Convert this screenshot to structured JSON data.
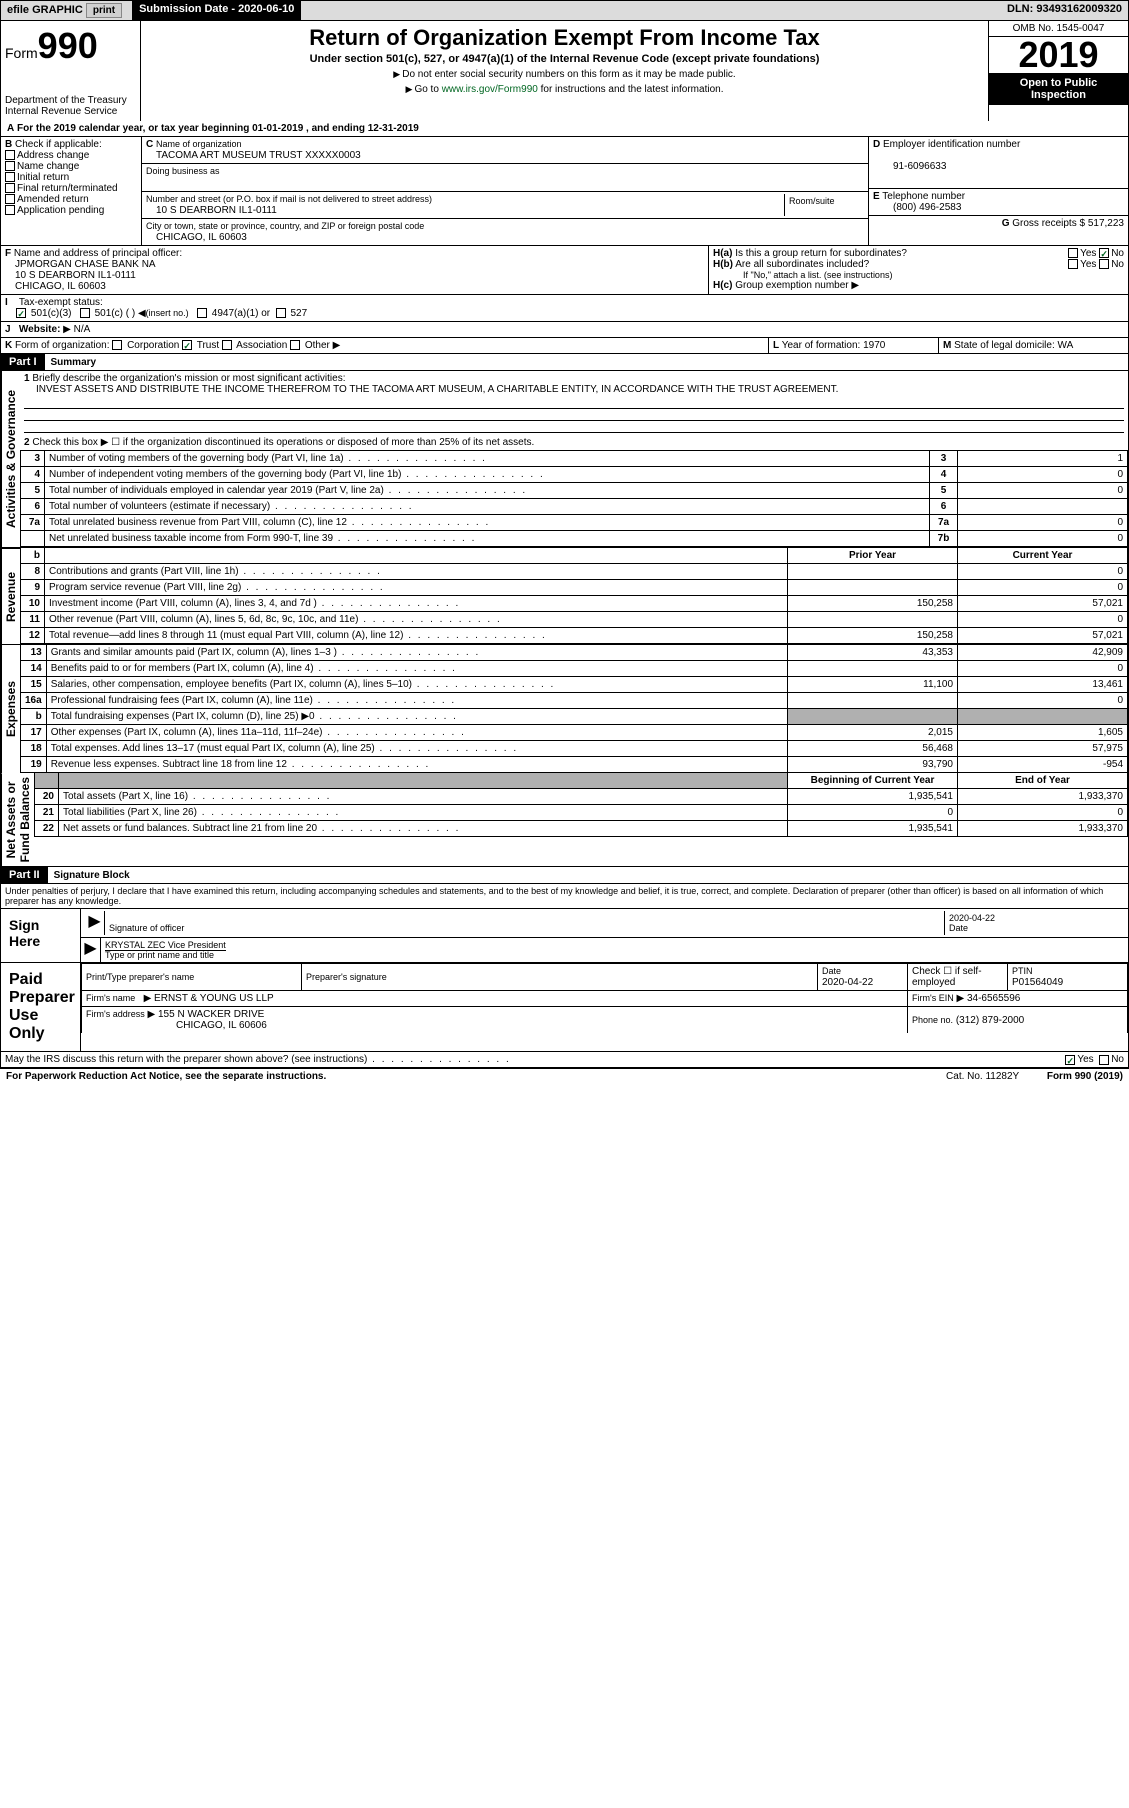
{
  "topbar": {
    "efile": "efile GRAPHIC",
    "print": "print",
    "subdate_label": "Submission Date",
    "subdate": "2020-06-10",
    "dln_label": "DLN:",
    "dln": "93493162009320"
  },
  "hdr": {
    "form_prefix": "Form",
    "form_num": "990",
    "dept1": "Department of the Treasury",
    "dept2": "Internal Revenue Service",
    "title": "Return of Organization Exempt From Income Tax",
    "sub": "Under section 501(c), 527, or 4947(a)(1) of the Internal Revenue Code (except private foundations)",
    "note1": "Do not enter social security numbers on this form as it may be made public.",
    "note2_pre": "Go to ",
    "note2_link": "www.irs.gov/Form990",
    "note2_post": " for instructions and the latest information.",
    "omb": "OMB No. 1545-0047",
    "year": "2019",
    "open1": "Open to Public",
    "open2": "Inspection"
  },
  "lineA": "For the 2019 calendar year, or tax year beginning 01-01-2019    , and ending 12-31-2019",
  "B": {
    "label": "Check if applicable:",
    "items": [
      "Address change",
      "Name change",
      "Initial return",
      "Final return/terminated",
      "Amended return",
      "Application pending"
    ]
  },
  "C": {
    "name_label": "Name of organization",
    "name": "TACOMA ART MUSEUM TRUST XXXXX0003",
    "dba_label": "Doing business as",
    "addr_label": "Number and street (or P.O. box if mail is not delivered to street address)",
    "room_label": "Room/suite",
    "addr": "10 S DEARBORN IL1-0111",
    "city_label": "City or town, state or province, country, and ZIP or foreign postal code",
    "city": "CHICAGO, IL  60603"
  },
  "D": {
    "label": "Employer identification number",
    "val": "91-6096633"
  },
  "E": {
    "label": "Telephone number",
    "val": "(800) 496-2583"
  },
  "G": {
    "label": "Gross receipts $",
    "val": "517,223"
  },
  "F": {
    "label": "Name and address of principal officer:",
    "name": "JPMORGAN CHASE BANK NA",
    "addr1": "10 S DEARBORN IL1-0111",
    "addr2": "CHICAGO, IL  60603"
  },
  "H": {
    "a": "Is this a group return for subordinates?",
    "b": "Are all subordinates included?",
    "b_note": "If \"No,\" attach a list. (see instructions)",
    "c": "Group exemption number",
    "yes": "Yes",
    "no": "No"
  },
  "I": {
    "label": "Tax-exempt status:",
    "c3": "501(c)(3)",
    "c": "501(c) (  )",
    "insert": "(insert no.)",
    "a4947": "4947(a)(1) or",
    "s527": "527"
  },
  "J": {
    "label": "Website:",
    "val": "N/A"
  },
  "K": {
    "label": "Form of organization:",
    "corp": "Corporation",
    "trust": "Trust",
    "assoc": "Association",
    "other": "Other"
  },
  "L": {
    "label": "Year of formation:",
    "val": "1970"
  },
  "M": {
    "label": "State of legal domicile:",
    "val": "WA"
  },
  "part1": {
    "num": "Part I",
    "title": "Summary"
  },
  "side": {
    "gov": "Activities & Governance",
    "rev": "Revenue",
    "exp": "Expenses",
    "net": "Net Assets or\nFund Balances"
  },
  "line1": {
    "label": "Briefly describe the organization's mission or most significant activities:",
    "text": "INVEST ASSETS AND DISTRIBUTE THE INCOME THEREFROM TO THE TACOMA ART MUSEUM, A CHARITABLE ENTITY, IN ACCORDANCE WITH THE TRUST AGREEMENT."
  },
  "line2": "Check this box ▶ ☐ if the organization discontinued its operations or disposed of more than 25% of its net assets.",
  "gov_rows": [
    {
      "n": "3",
      "t": "Number of voting members of the governing body (Part VI, line 1a)",
      "box": "3",
      "v": "1"
    },
    {
      "n": "4",
      "t": "Number of independent voting members of the governing body (Part VI, line 1b)",
      "box": "4",
      "v": "0"
    },
    {
      "n": "5",
      "t": "Total number of individuals employed in calendar year 2019 (Part V, line 2a)",
      "box": "5",
      "v": "0"
    },
    {
      "n": "6",
      "t": "Total number of volunteers (estimate if necessary)",
      "box": "6",
      "v": ""
    },
    {
      "n": "7a",
      "t": "Total unrelated business revenue from Part VIII, column (C), line 12",
      "box": "7a",
      "v": "0"
    },
    {
      "n": "",
      "t": "Net unrelated business taxable income from Form 990-T, line 39",
      "box": "7b",
      "v": "0"
    }
  ],
  "cols": {
    "b": "b",
    "py": "Prior Year",
    "cy": "Current Year"
  },
  "rev_rows": [
    {
      "n": "8",
      "t": "Contributions and grants (Part VIII, line 1h)",
      "py": "",
      "cy": "0"
    },
    {
      "n": "9",
      "t": "Program service revenue (Part VIII, line 2g)",
      "py": "",
      "cy": "0"
    },
    {
      "n": "10",
      "t": "Investment income (Part VIII, column (A), lines 3, 4, and 7d )",
      "py": "150,258",
      "cy": "57,021"
    },
    {
      "n": "11",
      "t": "Other revenue (Part VIII, column (A), lines 5, 6d, 8c, 9c, 10c, and 11e)",
      "py": "",
      "cy": "0"
    },
    {
      "n": "12",
      "t": "Total revenue—add lines 8 through 11 (must equal Part VIII, column (A), line 12)",
      "py": "150,258",
      "cy": "57,021"
    }
  ],
  "exp_rows": [
    {
      "n": "13",
      "t": "Grants and similar amounts paid (Part IX, column (A), lines 1–3 )",
      "py": "43,353",
      "cy": "42,909"
    },
    {
      "n": "14",
      "t": "Benefits paid to or for members (Part IX, column (A), line 4)",
      "py": "",
      "cy": "0"
    },
    {
      "n": "15",
      "t": "Salaries, other compensation, employee benefits (Part IX, column (A), lines 5–10)",
      "py": "11,100",
      "cy": "13,461"
    },
    {
      "n": "16a",
      "t": "Professional fundraising fees (Part IX, column (A), line 11e)",
      "py": "",
      "cy": "0"
    },
    {
      "n": "b",
      "t": "Total fundraising expenses (Part IX, column (D), line 25) ▶0",
      "py": "shade",
      "cy": "shade"
    },
    {
      "n": "17",
      "t": "Other expenses (Part IX, column (A), lines 11a–11d, 11f–24e)",
      "py": "2,015",
      "cy": "1,605"
    },
    {
      "n": "18",
      "t": "Total expenses. Add lines 13–17 (must equal Part IX, column (A), line 25)",
      "py": "56,468",
      "cy": "57,975"
    },
    {
      "n": "19",
      "t": "Revenue less expenses. Subtract line 18 from line 12",
      "py": "93,790",
      "cy": "-954"
    }
  ],
  "net_cols": {
    "begin": "Beginning of Current Year",
    "end": "End of Year"
  },
  "net_rows": [
    {
      "n": "20",
      "t": "Total assets (Part X, line 16)",
      "py": "1,935,541",
      "cy": "1,933,370"
    },
    {
      "n": "21",
      "t": "Total liabilities (Part X, line 26)",
      "py": "0",
      "cy": "0"
    },
    {
      "n": "22",
      "t": "Net assets or fund balances. Subtract line 21 from line 20",
      "py": "1,935,541",
      "cy": "1,933,370"
    }
  ],
  "part2": {
    "num": "Part II",
    "title": "Signature Block"
  },
  "perjury": "Under penalties of perjury, I declare that I have examined this return, including accompanying schedules and statements, and to the best of my knowledge and belief, it is true, correct, and complete. Declaration of preparer (other than officer) is based on all information of which preparer has any knowledge.",
  "sign": {
    "here": "Sign Here",
    "sig_label": "Signature of officer",
    "date": "2020-04-22",
    "date_label": "Date",
    "name": "KRYSTAL ZEC Vice President",
    "name_label": "Type or print name and title"
  },
  "paid": {
    "label": "Paid Preparer Use Only",
    "print_label": "Print/Type preparer's name",
    "sig_label": "Preparer's signature",
    "date_label": "Date",
    "date": "2020-04-22",
    "check_label": "Check ☐ if self-employed",
    "ptin_label": "PTIN",
    "ptin": "P01564049",
    "firm_label": "Firm's name",
    "firm": "ERNST & YOUNG US LLP",
    "ein_label": "Firm's EIN",
    "ein": "34-6565596",
    "addr_label": "Firm's address",
    "addr1": "155 N WACKER DRIVE",
    "addr2": "CHICAGO, IL  60606",
    "phone_label": "Phone no.",
    "phone": "(312) 879-2000"
  },
  "discuss": "May the IRS discuss this return with the preparer shown above? (see instructions)",
  "footer": {
    "pra": "For Paperwork Reduction Act Notice, see the separate instructions.",
    "cat": "Cat. No. 11282Y",
    "form": "Form 990 (2019)"
  }
}
